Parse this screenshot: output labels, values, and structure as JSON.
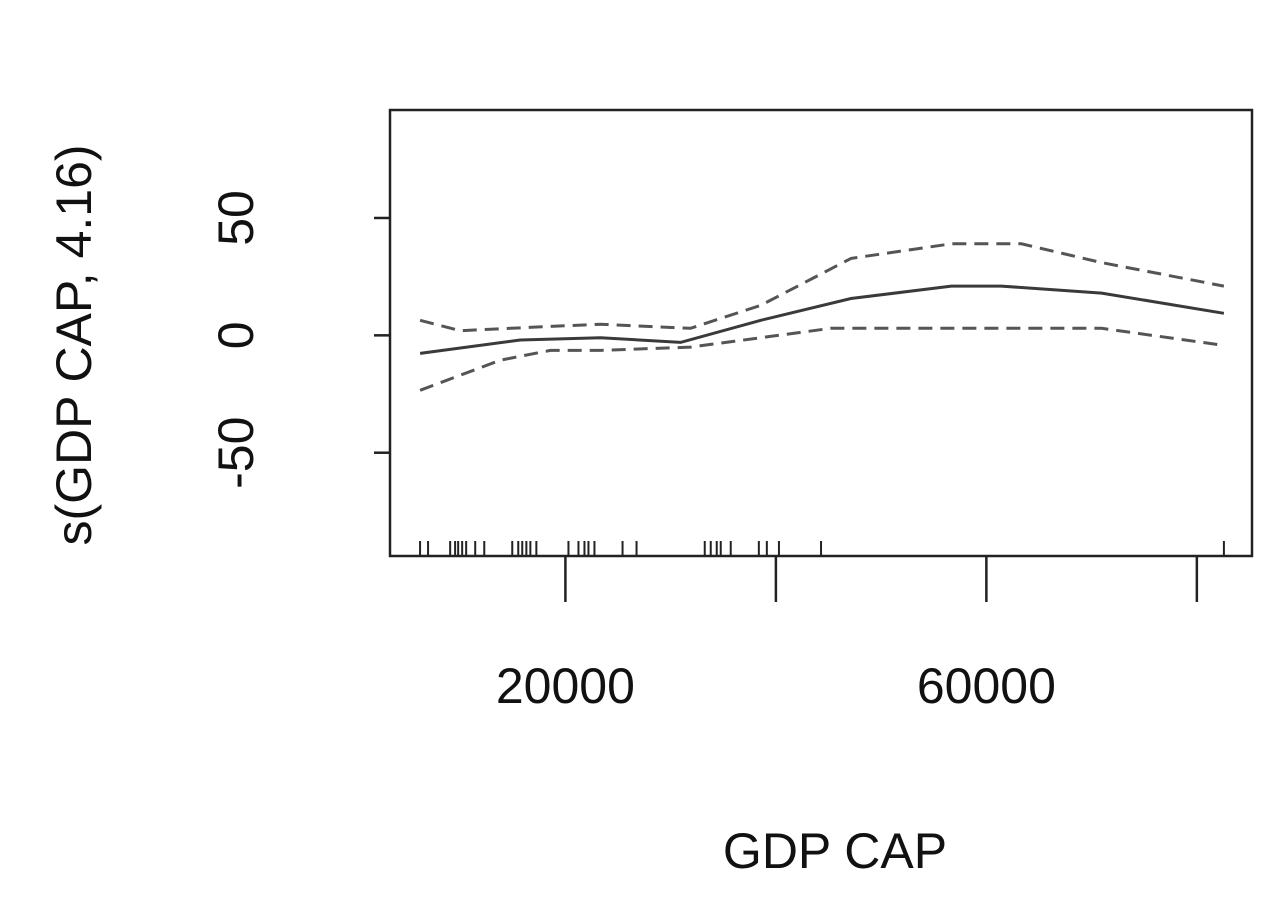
{
  "chart_data": {
    "type": "line",
    "xlabel": "GDP CAP",
    "ylabel": "s(GDP CAP, 4.16)",
    "xlim": [
      3333,
      85240
    ],
    "ylim": [
      -94,
      96
    ],
    "xticks": [
      20000,
      {
        "value": 40000,
        "label": null
      },
      60000,
      {
        "value": 80000,
        "label": null
      }
    ],
    "yticks": [
      -50,
      0,
      50
    ],
    "series": [
      {
        "dash": "solid",
        "color": "#3a3a3a",
        "x": [
          6190,
          15710,
          23330,
          30950,
          38570,
          47140,
          56670,
          61430,
          70950,
          82570
        ],
        "values": [
          -7.7,
          -2,
          -1,
          -3,
          6.4,
          15.7,
          21,
          21,
          18,
          9.4
        ]
      },
      {
        "dash": "dashed",
        "color": "#555555",
        "x": [
          6190,
          10000,
          18570,
          23330,
          31900,
          38570,
          47140,
          56670,
          63330,
          70950,
          82570
        ],
        "values": [
          6.4,
          2,
          3.8,
          4.7,
          3,
          12.8,
          32.8,
          39,
          39,
          31,
          21
        ]
      },
      {
        "dash": "dashed",
        "color": "#555555",
        "x": [
          6190,
          13810,
          18570,
          23330,
          31900,
          38570,
          45240,
          56670,
          70950,
          82570
        ],
        "values": [
          -23.4,
          -10.6,
          -6.4,
          -6.4,
          -5,
          -1,
          3,
          3,
          3,
          -4.3
        ]
      }
    ],
    "rug": [
      6190,
      6950,
      9050,
      9520,
      9810,
      10190,
      10570,
      11430,
      12290,
      14950,
      15520,
      15900,
      16290,
      16670,
      17240,
      20290,
      21240,
      21810,
      22190,
      22760,
      25430,
      26760,
      33240,
      33810,
      34380,
      34760,
      35710,
      38380,
      39140,
      40290,
      44290,
      82570
    ]
  }
}
